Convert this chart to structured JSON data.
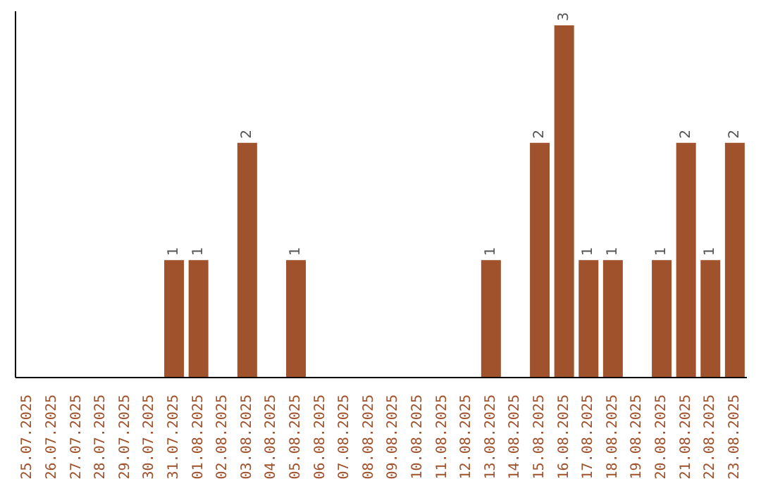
{
  "chart_data": {
    "type": "bar",
    "categories": [
      "25.07.2025",
      "26.07.2025",
      "27.07.2025",
      "28.07.2025",
      "29.07.2025",
      "30.07.2025",
      "31.07.2025",
      "01.08.2025",
      "02.08.2025",
      "03.08.2025",
      "04.08.2025",
      "05.08.2025",
      "06.08.2025",
      "07.08.2025",
      "08.08.2025",
      "09.08.2025",
      "10.08.2025",
      "11.08.2025",
      "12.08.2025",
      "13.08.2025",
      "14.08.2025",
      "15.08.2025",
      "16.08.2025",
      "17.08.2025",
      "18.08.2025",
      "19.08.2025",
      "20.08.2025",
      "21.08.2025",
      "22.08.2025",
      "23.08.2025"
    ],
    "values": [
      0,
      0,
      0,
      0,
      0,
      0,
      1,
      1,
      0,
      2,
      0,
      1,
      0,
      0,
      0,
      0,
      0,
      0,
      0,
      1,
      0,
      2,
      3,
      1,
      1,
      0,
      1,
      2,
      1,
      2
    ],
    "value_labels": [
      null,
      null,
      null,
      null,
      null,
      null,
      "1",
      "1",
      null,
      "2",
      null,
      "1",
      null,
      null,
      null,
      null,
      null,
      null,
      null,
      "1",
      null,
      "2",
      "3",
      "1",
      "1",
      null,
      "1",
      "2",
      "1",
      "2"
    ],
    "color": "#a0522d",
    "grid": false,
    "legend": false,
    "tick_labels": "x"
  }
}
